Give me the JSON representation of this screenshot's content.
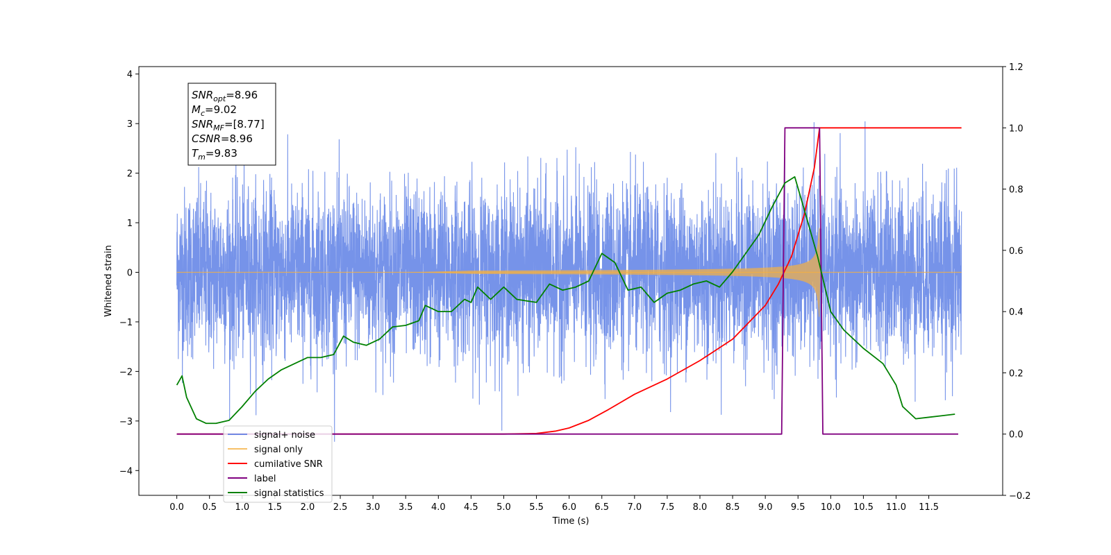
{
  "chart_data": {
    "type": "line",
    "xlabel": "Time (s)",
    "ylabel": "Whitened strain",
    "xlim": [
      -0.58,
      12.63
    ],
    "ylim": [
      -4.5,
      4.15
    ],
    "y2lim": [
      -0.2,
      1.2
    ],
    "x_ticks": [
      "0.0",
      "0.5",
      "1.0",
      "1.5",
      "2.0",
      "2.5",
      "3.0",
      "3.5",
      "4.0",
      "4.5",
      "5.0",
      "5.5",
      "6.0",
      "6.5",
      "7.0",
      "7.5",
      "8.0",
      "8.5",
      "9.0",
      "9.5",
      "10.0",
      "10.5",
      "11.0",
      "11.5"
    ],
    "y_ticks": [
      "4",
      "3",
      "2",
      "1",
      "0",
      "−1",
      "−2",
      "−3",
      "−4"
    ],
    "y2_ticks": [
      "1.2",
      "1.0",
      "0.8",
      "0.6",
      "0.4",
      "0.2",
      "0.0",
      "−0.2"
    ],
    "annotation": [
      {
        "sym": "SNR",
        "sub": "opt",
        "val": "=8.96"
      },
      {
        "sym": "M",
        "sub": "c",
        "val": "=9.02"
      },
      {
        "sym": "SNR",
        "sub": "MF",
        "val": "=[8.77]"
      },
      {
        "sym": "CSNR",
        "sub": "",
        "val": "=8.96"
      },
      {
        "sym": "T",
        "sub": "m",
        "val": "=9.83"
      }
    ],
    "legend_position": "lower-left",
    "series": [
      {
        "name": "signal+ noise",
        "axis": "left",
        "color": "#4169e1",
        "kind": "noisy strain, amplitude ~±2.5, peaks to ±3.8",
        "x_range": [
          0,
          12
        ]
      },
      {
        "name": "signal only",
        "axis": "left",
        "color": "#f5b041",
        "kind": "chirp, amplitude rising to ~0.9 at t=9.83 then zero",
        "peak_time": 9.83
      },
      {
        "name": "cumilative SNR",
        "axis": "right",
        "color": "#ff0000",
        "x": [
          0.0,
          5.0,
          5.5,
          5.8,
          6.0,
          6.3,
          6.6,
          7.0,
          7.5,
          8.0,
          8.5,
          9.0,
          9.2,
          9.4,
          9.6,
          9.75,
          9.83,
          9.84,
          12.0
        ],
        "y": [
          0.0,
          0.0,
          0.002,
          0.01,
          0.02,
          0.045,
          0.08,
          0.13,
          0.18,
          0.24,
          0.31,
          0.42,
          0.49,
          0.58,
          0.72,
          0.87,
          1.0,
          1.0,
          1.0
        ]
      },
      {
        "name": "label",
        "axis": "right",
        "color": "#800080",
        "x": [
          0.0,
          9.25,
          9.3,
          9.83,
          9.88,
          11.95
        ],
        "y": [
          0.0,
          0.0,
          1.0,
          1.0,
          0.0,
          0.0
        ]
      },
      {
        "name": "signal statistics",
        "axis": "right",
        "color": "#008000",
        "x": [
          0.0,
          0.08,
          0.15,
          0.3,
          0.45,
          0.6,
          0.8,
          1.0,
          1.2,
          1.4,
          1.6,
          1.8,
          2.0,
          2.2,
          2.4,
          2.55,
          2.7,
          2.9,
          3.1,
          3.3,
          3.5,
          3.7,
          3.8,
          3.9,
          4.0,
          4.2,
          4.4,
          4.5,
          4.6,
          4.8,
          5.0,
          5.2,
          5.5,
          5.7,
          5.9,
          6.1,
          6.3,
          6.5,
          6.7,
          6.9,
          7.1,
          7.3,
          7.5,
          7.7,
          7.9,
          8.1,
          8.3,
          8.5,
          8.7,
          8.9,
          9.1,
          9.3,
          9.45,
          9.6,
          9.8,
          10.0,
          10.2,
          10.5,
          10.8,
          11.0,
          11.1,
          11.3,
          11.5,
          11.7,
          11.9
        ],
        "y": [
          0.16,
          0.19,
          0.12,
          0.05,
          0.035,
          0.035,
          0.045,
          0.09,
          0.14,
          0.18,
          0.21,
          0.23,
          0.25,
          0.25,
          0.26,
          0.32,
          0.3,
          0.29,
          0.31,
          0.35,
          0.355,
          0.37,
          0.42,
          0.41,
          0.4,
          0.4,
          0.44,
          0.43,
          0.48,
          0.44,
          0.48,
          0.44,
          0.43,
          0.49,
          0.47,
          0.48,
          0.5,
          0.59,
          0.56,
          0.47,
          0.48,
          0.43,
          0.46,
          0.47,
          0.49,
          0.5,
          0.48,
          0.53,
          0.59,
          0.65,
          0.74,
          0.82,
          0.84,
          0.73,
          0.58,
          0.4,
          0.34,
          0.28,
          0.23,
          0.16,
          0.09,
          0.05,
          0.055,
          0.06,
          0.065
        ]
      }
    ]
  }
}
